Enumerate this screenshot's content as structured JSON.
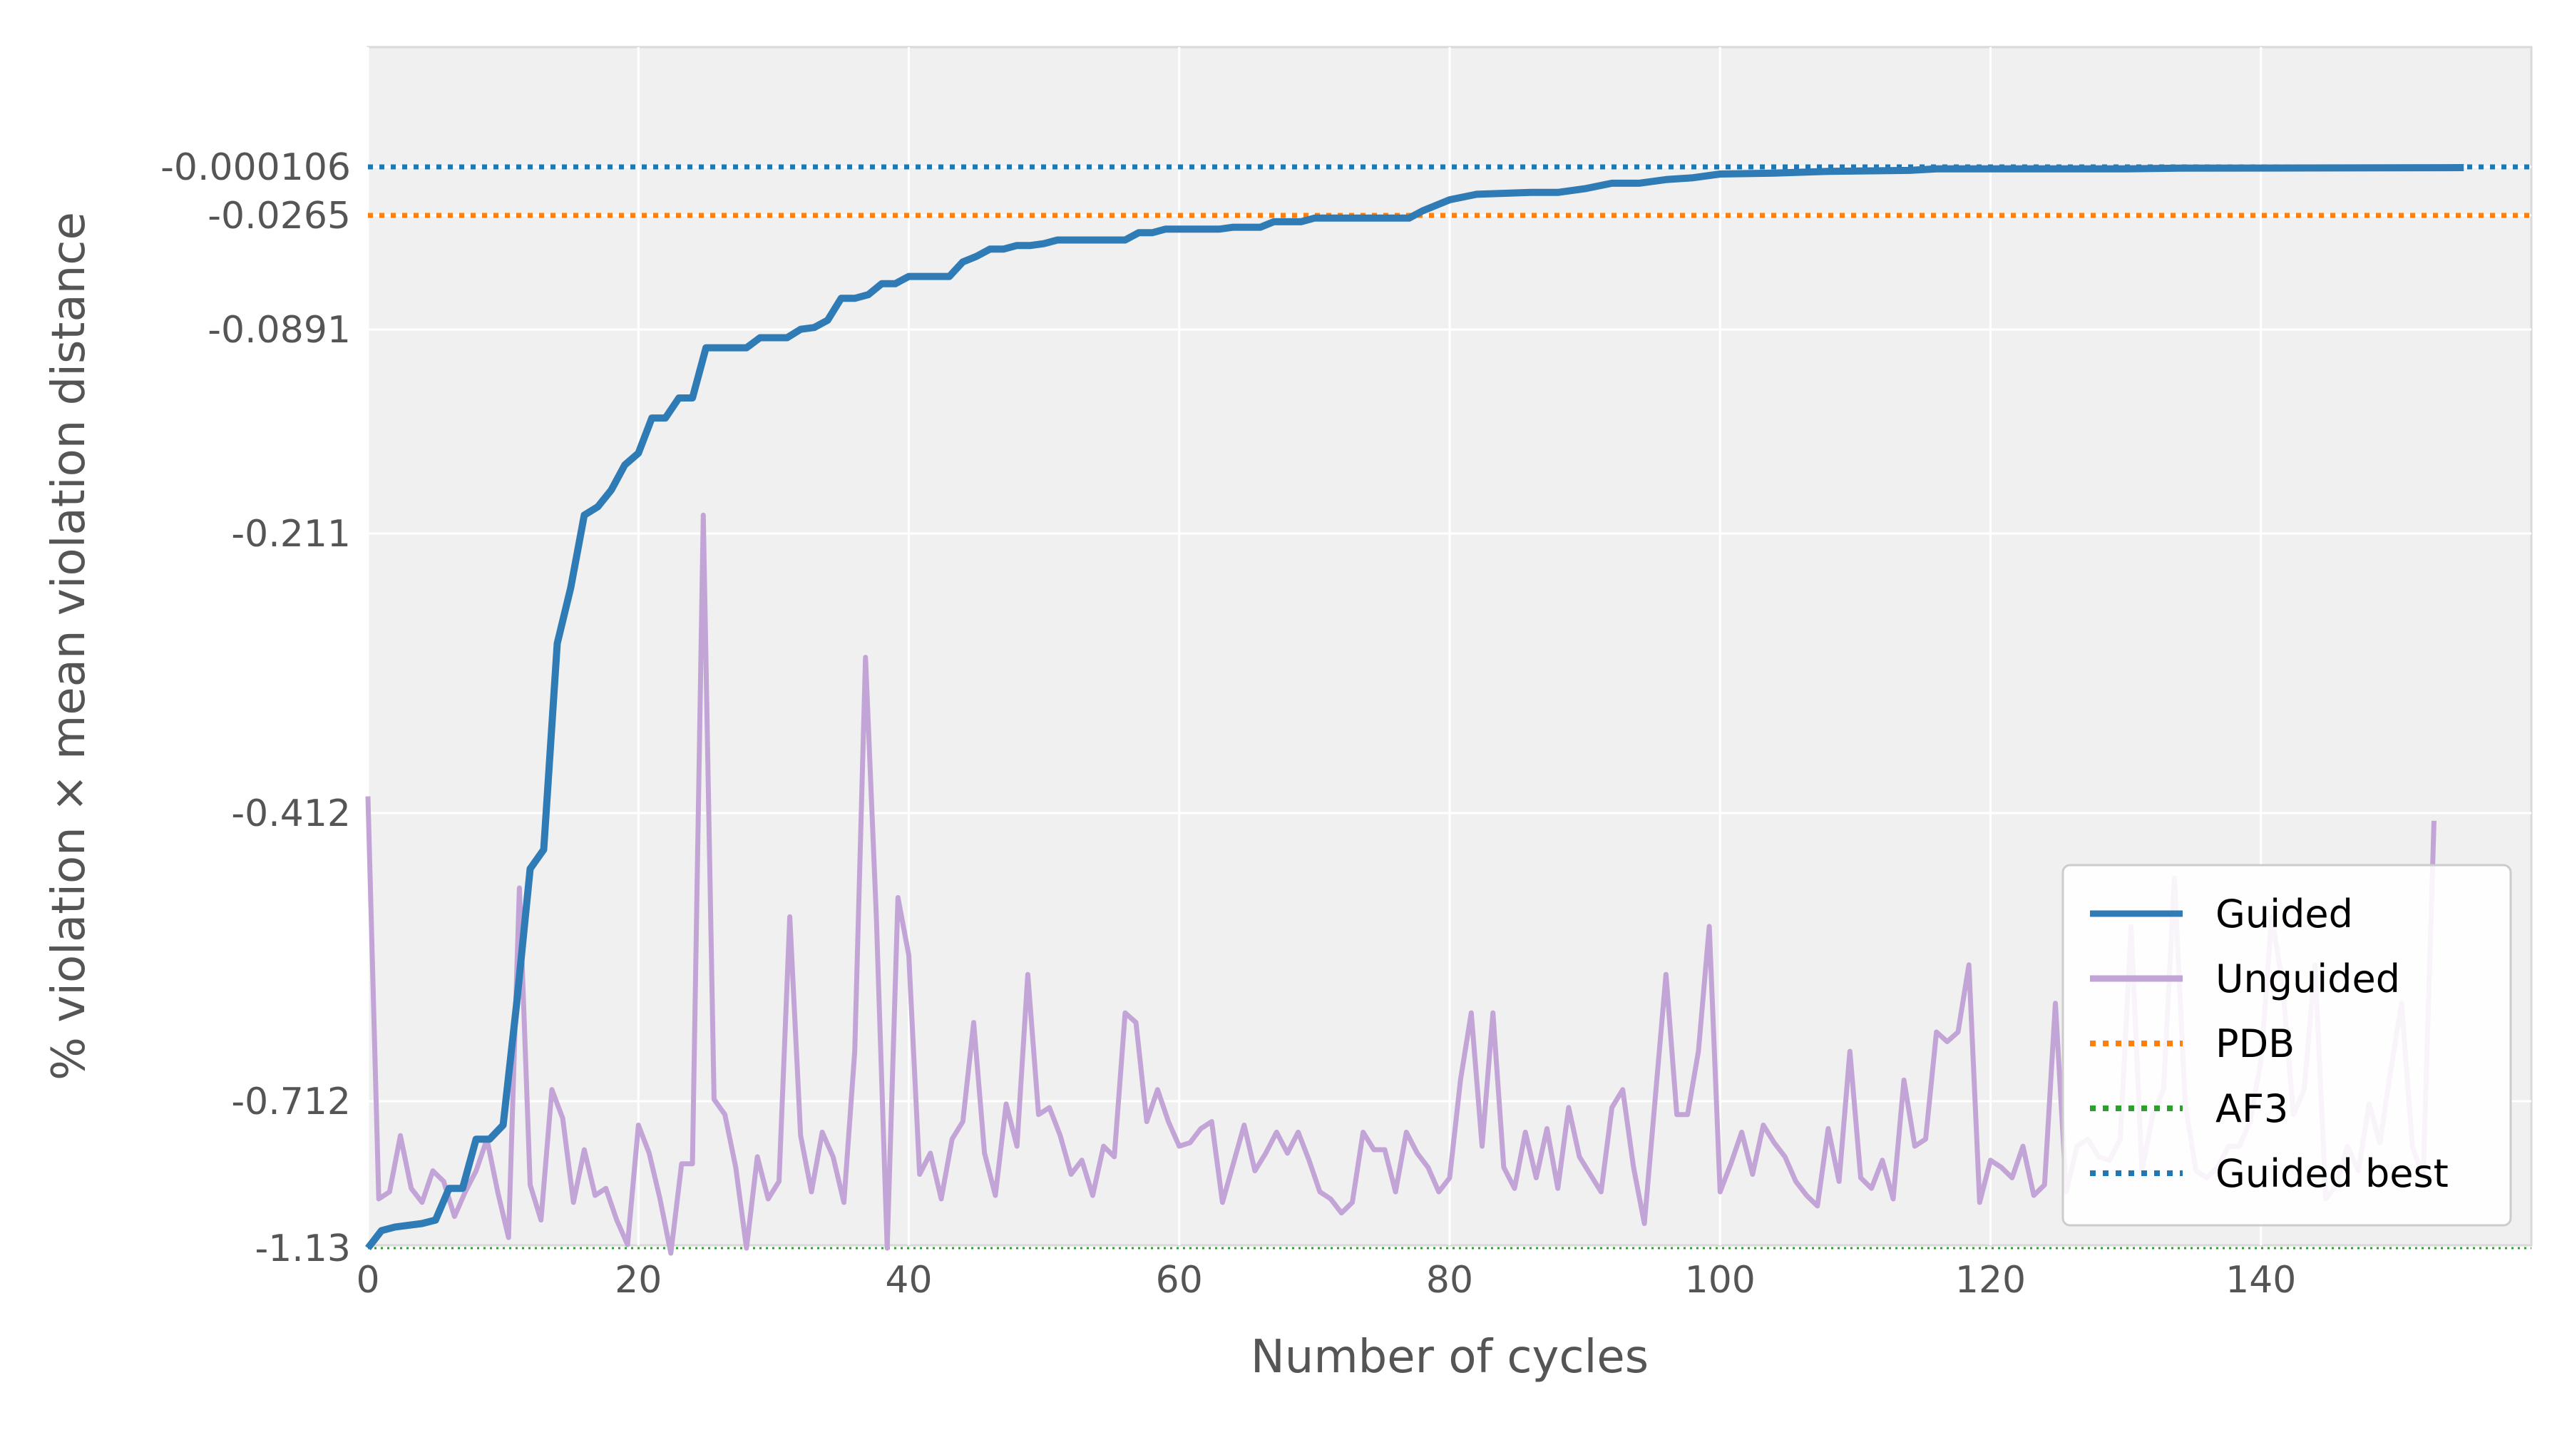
{
  "chart_data": {
    "type": "line",
    "title": "",
    "xlabel": "Number of cycles",
    "ylabel": "% violation × mean violation distance",
    "xlim": [
      0,
      160
    ],
    "x_ticks": [
      0,
      20,
      40,
      60,
      80,
      100,
      120,
      140
    ],
    "y_ticks": [
      "-0.000106",
      "-0.0265",
      "-0.0891",
      "-0.211",
      "-0.412",
      "-0.712",
      "-1.13"
    ],
    "y_scale": "symmetric-log (negative values, top = 0)",
    "grid": true,
    "legend_position": "lower-right",
    "legend": [
      {
        "label": "Guided",
        "color": "#2f7bb6",
        "style": "solid"
      },
      {
        "label": "Unguided",
        "color": "#c3a4d6",
        "style": "solid"
      },
      {
        "label": "PDB",
        "color": "#ff7f0e",
        "style": "dotted"
      },
      {
        "label": "AF3",
        "color": "#2ca02c",
        "style": "dotted"
      },
      {
        "label": "Guided best",
        "color": "#1f77b4",
        "style": "dotted"
      }
    ],
    "reference_lines": [
      {
        "name": "PDB",
        "y": -0.0265
      },
      {
        "name": "AF3",
        "y": -1.13
      },
      {
        "name": "Guided best",
        "y": -0.000106
      }
    ],
    "series": [
      {
        "name": "Guided",
        "points": [
          [
            0,
            -1.13
          ],
          [
            1,
            -1.08
          ],
          [
            2,
            -1.07
          ],
          [
            4,
            -1.06
          ],
          [
            5,
            -1.05
          ],
          [
            6,
            -0.96
          ],
          [
            7,
            -0.96
          ],
          [
            8,
            -0.82
          ],
          [
            9,
            -0.82
          ],
          [
            10,
            -0.78
          ],
          [
            11,
            -0.61
          ],
          [
            12,
            -0.47
          ],
          [
            13,
            -0.45
          ],
          [
            14,
            -0.29
          ],
          [
            15,
            -0.25
          ],
          [
            16,
            -0.2
          ],
          [
            17,
            -0.195
          ],
          [
            18,
            -0.185
          ],
          [
            19,
            -0.17
          ],
          [
            20,
            -0.163
          ],
          [
            21,
            -0.142
          ],
          [
            22,
            -0.142
          ],
          [
            23,
            -0.13
          ],
          [
            24,
            -0.13
          ],
          [
            25,
            -0.1
          ],
          [
            28,
            -0.1
          ],
          [
            29,
            -0.094
          ],
          [
            31,
            -0.094
          ],
          [
            32,
            -0.089
          ],
          [
            33,
            -0.088
          ],
          [
            34,
            -0.084
          ],
          [
            35,
            -0.072
          ],
          [
            36,
            -0.072
          ],
          [
            37,
            -0.07
          ],
          [
            38,
            -0.064
          ],
          [
            39,
            -0.064
          ],
          [
            40,
            -0.06
          ],
          [
            43,
            -0.06
          ],
          [
            44,
            -0.052
          ],
          [
            45,
            -0.049
          ],
          [
            46,
            -0.045
          ],
          [
            47,
            -0.045
          ],
          [
            48,
            -0.043
          ],
          [
            49,
            -0.043
          ],
          [
            50,
            -0.042
          ],
          [
            51,
            -0.04
          ],
          [
            56,
            -0.04
          ],
          [
            57,
            -0.036
          ],
          [
            58,
            -0.036
          ],
          [
            59,
            -0.034
          ],
          [
            63,
            -0.034
          ],
          [
            64,
            -0.033
          ],
          [
            66,
            -0.033
          ],
          [
            67,
            -0.03
          ],
          [
            69,
            -0.03
          ],
          [
            70,
            -0.028
          ],
          [
            77,
            -0.028
          ],
          [
            78,
            -0.024
          ],
          [
            80,
            -0.018
          ],
          [
            82,
            -0.015
          ],
          [
            86,
            -0.014
          ],
          [
            88,
            -0.014
          ],
          [
            90,
            -0.012
          ],
          [
            92,
            -0.009
          ],
          [
            94,
            -0.009
          ],
          [
            96,
            -0.007
          ],
          [
            98,
            -0.006
          ],
          [
            100,
            -0.004
          ],
          [
            104,
            -0.0035
          ],
          [
            108,
            -0.0025
          ],
          [
            114,
            -0.002
          ],
          [
            116,
            -0.0012
          ],
          [
            130,
            -0.0012
          ],
          [
            134,
            -0.0008
          ],
          [
            150,
            -0.0006
          ],
          [
            155,
            -0.0005
          ]
        ]
      },
      {
        "name": "Unguided",
        "x_start": 0,
        "x_step": 0.8,
        "values": [
          -0.4,
          -0.99,
          -0.97,
          -0.81,
          -0.96,
          -1.0,
          -0.91,
          -0.94,
          -1.04,
          -0.97,
          -0.91,
          -0.82,
          -0.97,
          -1.1,
          -0.49,
          -0.95,
          -1.05,
          -0.7,
          -0.76,
          -1.0,
          -0.85,
          -0.98,
          -0.96,
          -1.05,
          -1.12,
          -0.78,
          -0.86,
          -0.99,
          -1.14,
          -0.89,
          -0.89,
          -0.2,
          -0.71,
          -0.75,
          -0.9,
          -1.13,
          -0.87,
          -0.99,
          -0.94,
          -0.52,
          -0.81,
          -0.97,
          -0.8,
          -0.87,
          -1.0,
          -0.66,
          -0.3,
          -0.52,
          -1.13,
          -0.5,
          -0.56,
          -0.92,
          -0.86,
          -0.99,
          -0.82,
          -0.77,
          -0.63,
          -0.86,
          -0.98,
          -0.72,
          -0.84,
          -0.58,
          -0.75,
          -0.73,
          -0.81,
          -0.92,
          -0.88,
          -0.98,
          -0.84,
          -0.87,
          -0.62,
          -0.63,
          -0.77,
          -0.7,
          -0.77,
          -0.84,
          -0.83,
          -0.79,
          -0.77,
          -1.0,
          -0.89,
          -0.78,
          -0.91,
          -0.86,
          -0.8,
          -0.86,
          -0.8,
          -0.88,
          -0.97,
          -0.99,
          -1.03,
          -1.0,
          -0.8,
          -0.85,
          -0.85,
          -0.97,
          -0.8,
          -0.86,
          -0.9,
          -0.97,
          -0.93,
          -0.69,
          -0.62,
          -0.84,
          -0.62,
          -0.9,
          -0.96,
          -0.8,
          -0.93,
          -0.79,
          -0.96,
          -0.73,
          -0.87,
          -0.92,
          -0.97,
          -0.73,
          -0.7,
          -0.9,
          -1.06,
          -0.71,
          -0.58,
          -0.75,
          -0.75,
          -0.66,
          -0.53,
          -0.97,
          -0.89,
          -0.8,
          -0.92,
          -0.78,
          -0.83,
          -0.87,
          -0.94,
          -0.98,
          -1.01,
          -0.79,
          -0.94,
          -0.66,
          -0.93,
          -0.96,
          -0.88,
          -0.99,
          -0.69,
          -0.84,
          -0.82,
          -0.64,
          -0.65,
          -0.64,
          -0.57,
          -1.0,
          -0.88,
          -0.9,
          -0.93,
          -0.84,
          -0.98,
          -0.95,
          -0.61,
          -0.97,
          -0.84,
          -0.82,
          -0.87,
          -0.88,
          -0.82,
          -0.53,
          -0.91,
          -0.75,
          -0.7,
          -0.48,
          -0.72,
          -0.91,
          -0.93,
          -0.9,
          -0.84,
          -0.84,
          -0.77,
          -0.67,
          -0.52,
          -0.59,
          -0.75,
          -0.7,
          -0.57,
          -0.99,
          -0.95,
          -0.84,
          -0.91,
          -0.72,
          -0.83,
          -0.68,
          -0.61,
          -0.84,
          -0.93,
          -0.42
        ]
      }
    ]
  }
}
